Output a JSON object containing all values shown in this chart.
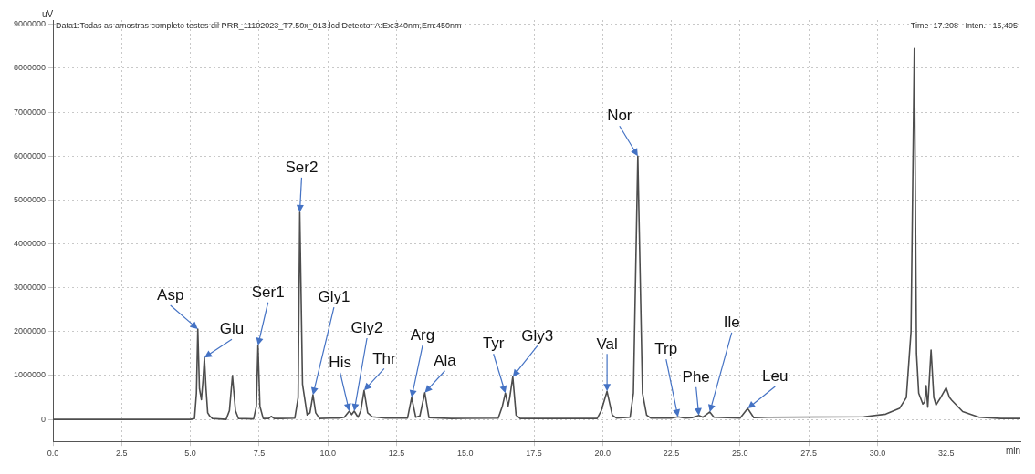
{
  "chart_data": {
    "type": "line",
    "xlabel": "min",
    "ylabel": "uV",
    "x": [
      0,
      5.0,
      5.15,
      5.22,
      5.27,
      5.33,
      5.4,
      5.46,
      5.51,
      5.57,
      5.63,
      5.7,
      5.8,
      6.3,
      6.42,
      6.53,
      6.64,
      6.75,
      7.3,
      7.4,
      7.46,
      7.53,
      7.65,
      7.85,
      7.94,
      8.05,
      8.3,
      8.8,
      8.92,
      8.98,
      9.08,
      9.25,
      9.35,
      9.46,
      9.56,
      9.7,
      10.1,
      10.4,
      10.6,
      10.78,
      10.87,
      10.96,
      11.1,
      11.2,
      11.32,
      11.45,
      11.62,
      12.1,
      12.9,
      13.05,
      13.2,
      13.35,
      13.53,
      13.68,
      14.5,
      16.2,
      16.35,
      16.46,
      16.56,
      16.62,
      16.73,
      16.85,
      17.0,
      19.8,
      19.95,
      20.16,
      20.35,
      20.5,
      21.0,
      21.12,
      21.28,
      21.45,
      21.6,
      21.75,
      22.5,
      22.74,
      23.0,
      23.25,
      23.5,
      23.65,
      23.9,
      24.05,
      25.0,
      25.28,
      25.5,
      26.0,
      29.5,
      30.3,
      30.8,
      31.05,
      31.22,
      31.34,
      31.42,
      31.5,
      31.65,
      31.72,
      31.77,
      31.83,
      31.95,
      32.05,
      32.13,
      32.3,
      32.5,
      32.62,
      32.7,
      33.1,
      33.7,
      34.5,
      35.2
    ],
    "values": [
      0,
      0,
      20000,
      600000,
      2060000,
      700000,
      450000,
      900000,
      1410000,
      700000,
      150000,
      80000,
      20000,
      0,
      200000,
      1000000,
      200000,
      20000,
      10000,
      300000,
      1690000,
      300000,
      20000,
      20000,
      70000,
      20000,
      20000,
      30000,
      500000,
      4720000,
      800000,
      100000,
      150000,
      560000,
      150000,
      20000,
      30000,
      30000,
      50000,
      190000,
      110000,
      190000,
      50000,
      200000,
      660000,
      150000,
      60000,
      30000,
      30000,
      500000,
      50000,
      80000,
      610000,
      40000,
      20000,
      30000,
      300000,
      600000,
      300000,
      500000,
      970000,
      100000,
      20000,
      20000,
      200000,
      640000,
      100000,
      30000,
      50000,
      600000,
      6000000,
      600000,
      100000,
      30000,
      30000,
      60000,
      30000,
      40000,
      90000,
      50000,
      170000,
      50000,
      30000,
      250000,
      40000,
      50000,
      60000,
      120000,
      250000,
      500000,
      2000000,
      8450000,
      1500000,
      600000,
      350000,
      400000,
      770000,
      280000,
      1580000,
      500000,
      330000,
      500000,
      720000,
      500000,
      440000,
      180000,
      50000,
      20000,
      20000
    ],
    "color": "#4d4d4d",
    "xlim": [
      0,
      35.2
    ],
    "xticks": [
      {
        "value": 0,
        "label": "0.0"
      },
      2.5,
      {
        "value": 5,
        "label": "5.0"
      },
      7.5,
      {
        "value": 10,
        "label": "10.0"
      },
      12.5,
      {
        "value": 15,
        "label": "15.0"
      },
      17.5,
      {
        "value": 20,
        "label": "20.0"
      },
      22.5,
      {
        "value": 25,
        "label": "25.0"
      },
      27.5,
      {
        "value": 30,
        "label": "30.0"
      },
      32.5
    ],
    "ylim": [
      -500000,
      9100000
    ],
    "yticks": [
      0,
      1000000,
      2000000,
      3000000,
      4000000,
      5000000,
      6000000,
      7000000,
      8000000,
      9000000
    ],
    "grid": true,
    "line_style": "solid",
    "marker": "none",
    "annotations": [
      "Data1:Todas as amostras completo testes dil PRR_11102023_T7.50x_013.lcd Detector A:Ex:340nm,Em:450nm",
      "Time  17.208   Inten.   15,495",
      {
        "text": "Asp",
        "x": 5.27,
        "y": 2060000
      },
      {
        "text": "Glu",
        "x": 5.51,
        "y": 1410000
      },
      {
        "text": "Ser1",
        "x": 7.46,
        "y": 1690000
      },
      {
        "text": "Ser2",
        "x": 8.98,
        "y": 4720000
      },
      {
        "text": "Gly1",
        "x": 9.46,
        "y": 560000
      },
      {
        "text": "His",
        "x": 10.78,
        "y": 190000
      },
      {
        "text": "Gly2",
        "x": 10.96,
        "y": 190000
      },
      {
        "text": "Thr",
        "x": 11.32,
        "y": 660000
      },
      {
        "text": "Arg",
        "x": 13.05,
        "y": 500000
      },
      {
        "text": "Ala",
        "x": 13.53,
        "y": 610000
      },
      {
        "text": "Tyr",
        "x": 16.46,
        "y": 600000
      },
      {
        "text": "Gly3",
        "x": 16.73,
        "y": 970000
      },
      {
        "text": "Val",
        "x": 20.16,
        "y": 640000
      },
      {
        "text": "Nor",
        "x": 21.28,
        "y": 6000000
      },
      {
        "text": "Trp",
        "x": 22.74,
        "y": 60000
      },
      {
        "text": "Phe",
        "x": 23.5,
        "y": 90000
      },
      {
        "text": "Ile",
        "x": 23.9,
        "y": 170000
      },
      {
        "text": "Leu",
        "x": 25.28,
        "y": 250000
      }
    ]
  }
}
